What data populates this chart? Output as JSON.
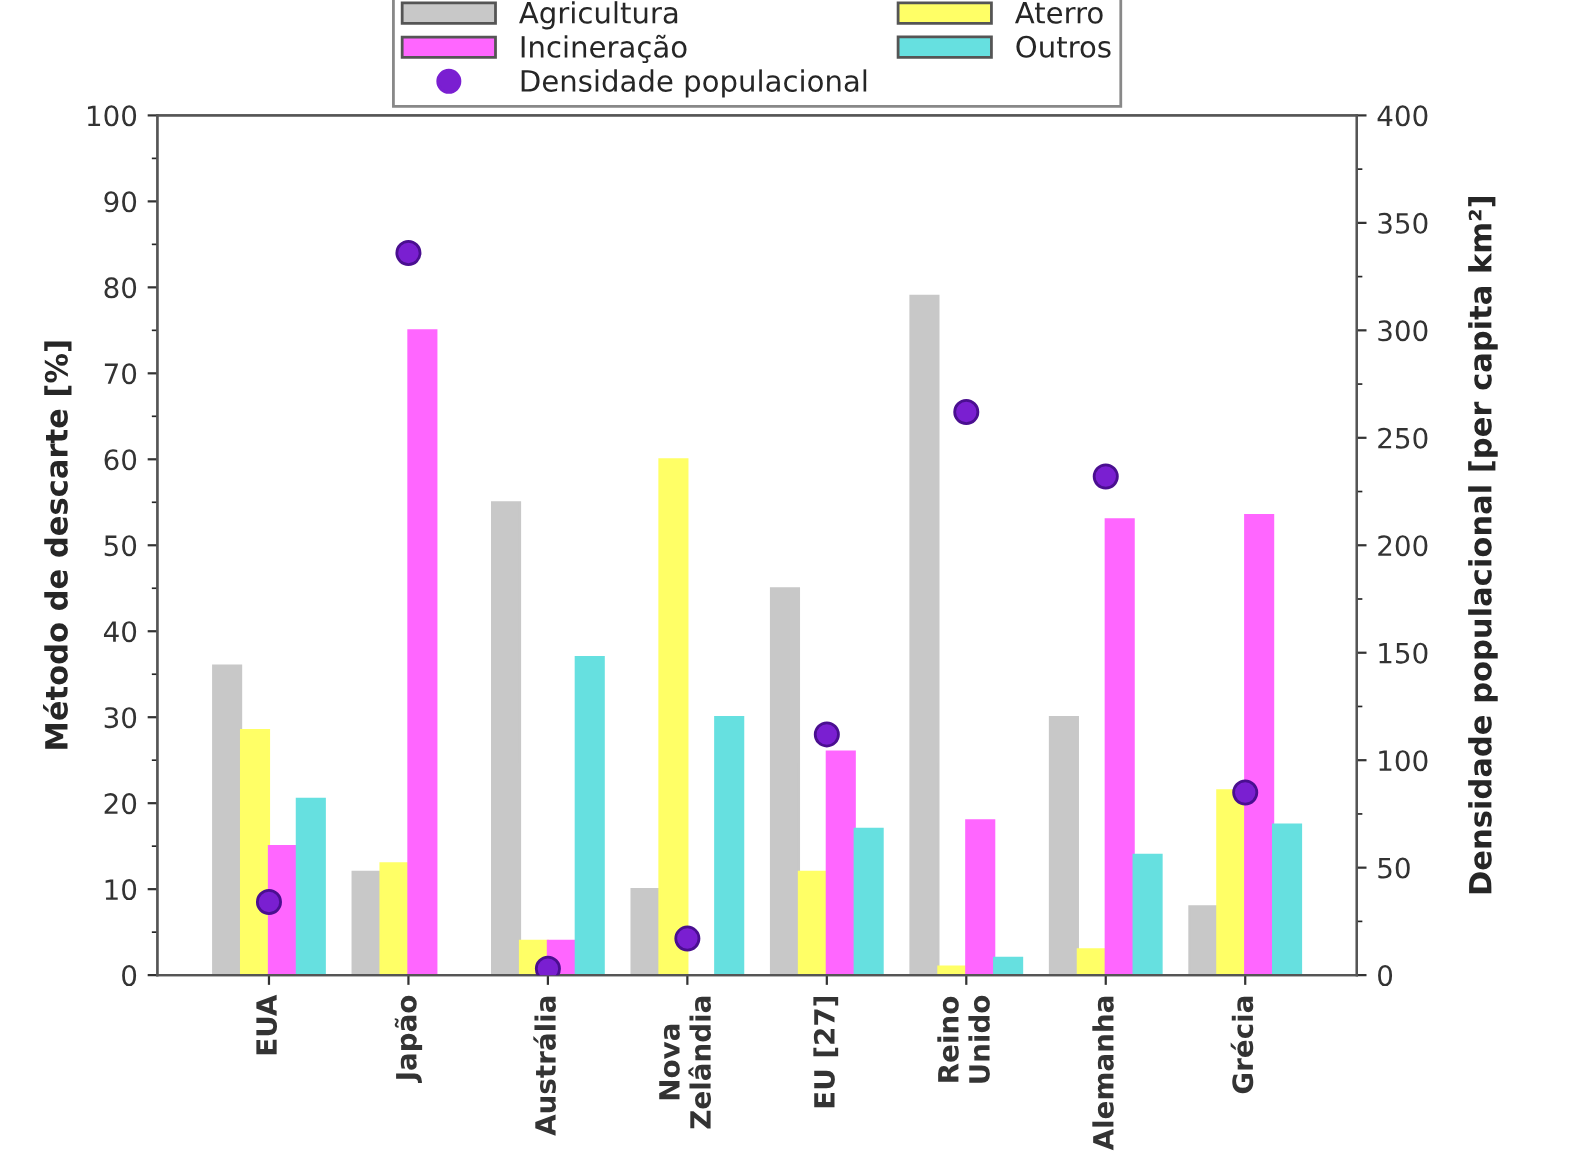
{
  "chart_data": {
    "type": "bar",
    "categories": [
      "EUA",
      "Japão",
      "Austrália",
      "Nova\nZelândia",
      "EU [27]",
      "Reino\nUnido",
      "Alemanha",
      "Grécia"
    ],
    "series": [
      {
        "name": "Agricultura",
        "color": "#c8c8c8",
        "values": [
          36,
          12,
          55,
          10,
          45,
          79,
          30,
          8
        ]
      },
      {
        "name": "Aterro",
        "color": "#ffff66",
        "values": [
          28.5,
          13,
          4,
          60,
          12,
          1,
          3,
          21.5
        ]
      },
      {
        "name": "Incineração",
        "color": "#ff66ff",
        "values": [
          15,
          75,
          4,
          null,
          26,
          18,
          53,
          53.5
        ]
      },
      {
        "name": "Outros",
        "color": "#66e0e0",
        "values": [
          20.5,
          null,
          37,
          30,
          17,
          2,
          14,
          17.5
        ]
      },
      {
        "name": "Densidade populacional",
        "type": "scatter",
        "axis": "y2",
        "color": "#7a1fd1",
        "values": [
          34,
          336,
          3,
          17,
          112,
          262,
          232,
          85
        ]
      }
    ],
    "ylabel": "Método de descarte [%]",
    "y2label": "Densidade populacional [per capita km²]",
    "ylim": [
      0,
      100
    ],
    "yticks": [
      0,
      10,
      20,
      30,
      40,
      50,
      60,
      70,
      80,
      90,
      100
    ],
    "y2lim": [
      0,
      400
    ],
    "y2ticks": [
      0,
      50,
      100,
      150,
      200,
      250,
      300,
      350,
      400
    ],
    "legend": "top",
    "marker": "circle"
  }
}
